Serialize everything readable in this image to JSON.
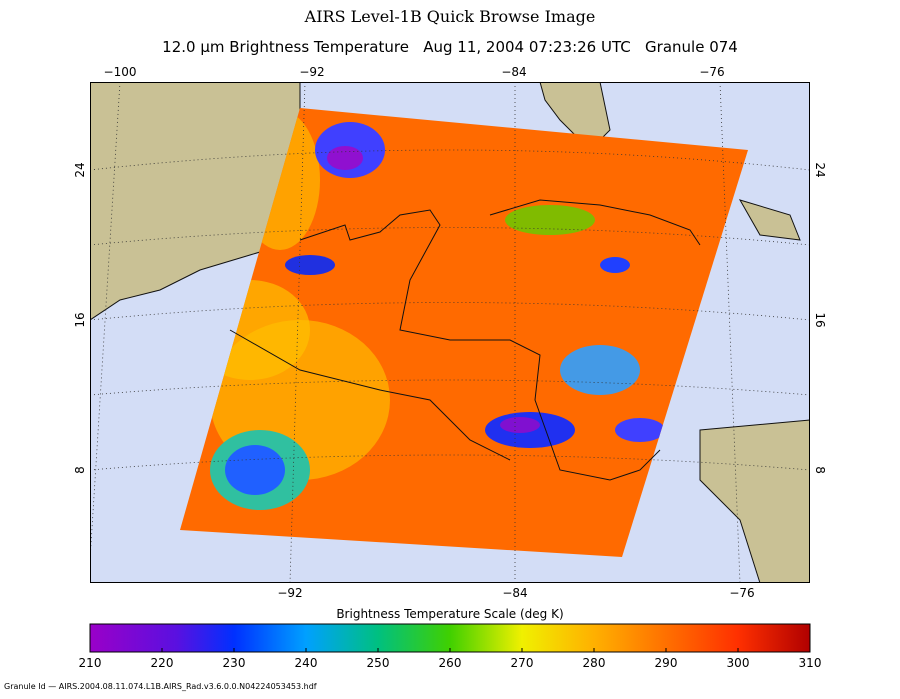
{
  "header": {
    "title": "AIRS Level-1B Quick Browse Image",
    "subtitle": "12.0 μm Brightness Temperature   Aug 11, 2004 07:23:26 UTC   Granule 074"
  },
  "map": {
    "lon_labels_top": [
      "−100",
      "−92",
      "−84",
      "−76"
    ],
    "lon_labels_bottom": [
      "−92",
      "−84",
      "−76"
    ],
    "lat_labels": [
      "24",
      "16",
      "8"
    ]
  },
  "colorbar": {
    "title": "Brightness Temperature Scale (deg K)",
    "range": [
      210,
      310
    ],
    "ticks": [
      210,
      220,
      230,
      240,
      250,
      260,
      270,
      280,
      290,
      300,
      310
    ]
  },
  "footer": "Granule Id — AIRS.2004.08.11.074.L1B.AIRS_Rad.v3.6.0.0.N04224053453.hdf"
}
